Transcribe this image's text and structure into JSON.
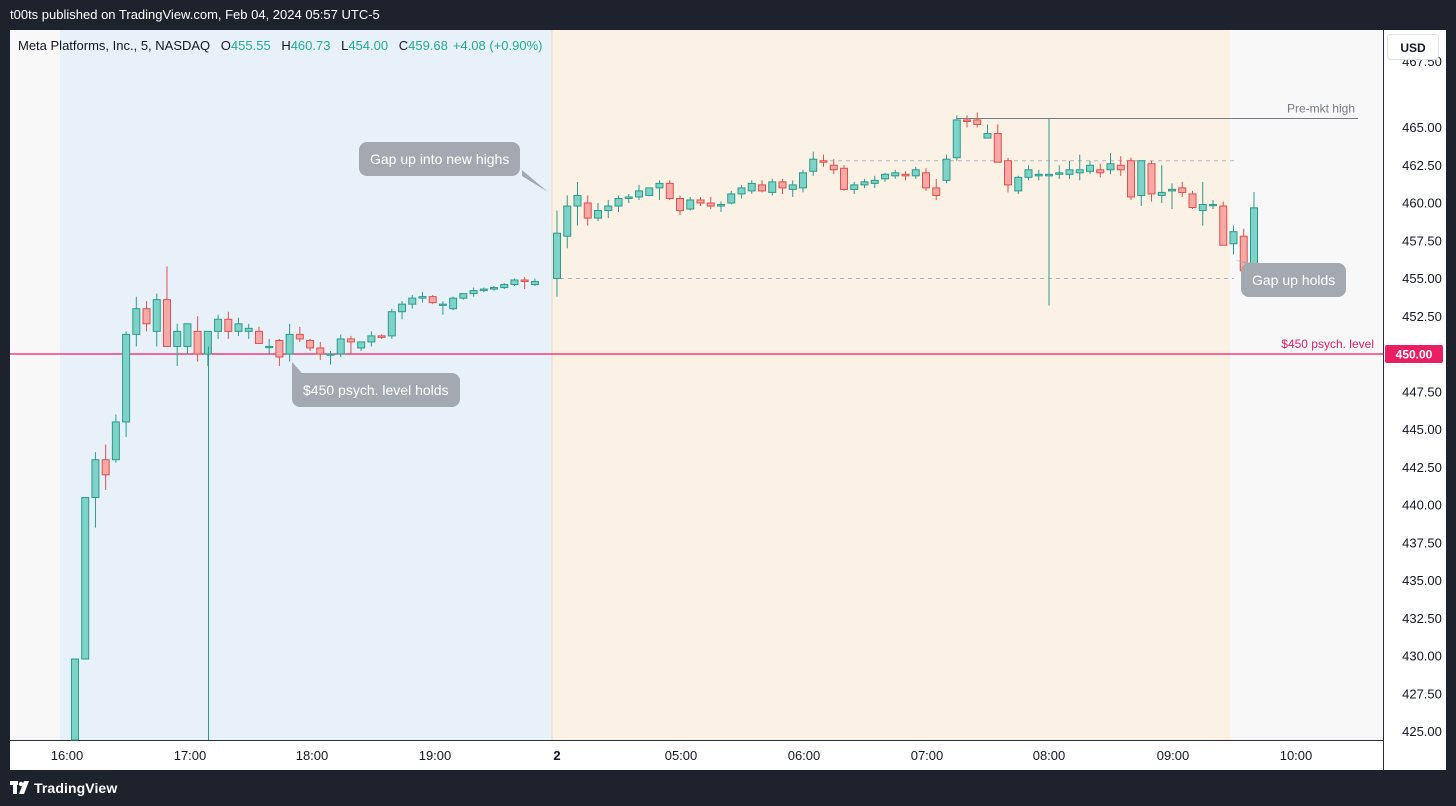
{
  "header": {
    "published": "t00ts published on TradingView.com, Feb 04, 2024 05:57 UTC-5"
  },
  "legend": {
    "symbol": "Meta Platforms, Inc., 5, NASDAQ",
    "open_label": "O",
    "open": "455.55",
    "high_label": "H",
    "high": "460.73",
    "low_label": "L",
    "low": "454.00",
    "close_label": "C",
    "close": "459.68",
    "change": "+4.08 (+0.90%)"
  },
  "currency_button": "USD",
  "annotations": {
    "gap_up_new_highs": "Gap up into new highs",
    "psych_level_holds": "$450 psych. level holds",
    "gap_up_holds": "Gap up holds"
  },
  "footer": {
    "brand": "TradingView"
  },
  "colors": {
    "up": "#26a69a",
    "up_fill": "#7dd3c8",
    "down": "#ef5350",
    "down_fill": "#f7a9a7",
    "psych_line": "#e91e63",
    "premarket_shade": "#e8f1f9",
    "regular_shade": "#fbf1e4",
    "grid": "#f0f3fa",
    "axis_text": "#131722"
  },
  "chart_data": {
    "type": "candlestick",
    "symbol": "Meta Platforms, Inc., 5, NASDAQ",
    "interval": "5",
    "currency": "USD",
    "y_ticks": [
      "425.00",
      "427.50",
      "430.00",
      "432.50",
      "435.00",
      "437.50",
      "440.00",
      "442.50",
      "445.00",
      "447.50",
      "450.00",
      "452.50",
      "455.00",
      "457.50",
      "460.00",
      "462.50",
      "465.00"
    ],
    "ylim": [
      422.5,
      467.5
    ],
    "x_ticks": [
      "16:00",
      "17:00",
      "18:00",
      "19:00",
      "2",
      "05:00",
      "06:00",
      "07:00",
      "08:00",
      "09:00",
      "10:00"
    ],
    "sessions": [
      {
        "from": "15:55",
        "to": "19:55"
      },
      {
        "from": "04:00",
        "to": "09:30"
      }
    ],
    "levels": [
      {
        "label": "Pre-mkt high",
        "value": 465.6
      },
      {
        "label": "$450 psych. level",
        "value": 450.0,
        "price_tag": "450.00"
      },
      {
        "value": 462.8
      },
      {
        "value": 455.0
      }
    ],
    "candles_session1": [
      [
        417.0,
        429.8,
        415.0,
        429.8
      ],
      [
        429.8,
        440.5,
        429.8,
        440.5
      ],
      [
        440.5,
        443.5,
        438.5,
        443.0
      ],
      [
        443.0,
        444.0,
        441.0,
        442.0
      ],
      [
        443.0,
        446.0,
        442.8,
        445.5
      ],
      [
        445.5,
        451.5,
        444.5,
        451.3
      ],
      [
        451.3,
        453.8,
        450.5,
        453.0
      ],
      [
        453.0,
        453.5,
        451.5,
        452.0
      ],
      [
        451.5,
        454.0,
        450.5,
        453.6
      ],
      [
        453.6,
        455.8,
        450.5,
        450.5
      ],
      [
        450.5,
        452.0,
        449.2,
        451.5
      ],
      [
        450.5,
        452.0,
        450.0,
        452.0
      ],
      [
        451.5,
        452.5,
        449.5,
        450.0
      ],
      [
        450.0,
        451.5,
        449.2,
        451.5
      ],
      [
        451.5,
        452.6,
        451.0,
        452.3
      ],
      [
        452.3,
        452.8,
        451.0,
        451.5
      ],
      [
        451.5,
        452.4,
        451.2,
        452.0
      ],
      [
        451.5,
        452.0,
        451.0,
        451.7
      ],
      [
        451.5,
        451.8,
        450.7,
        450.7
      ],
      [
        450.5,
        451.0,
        450.0,
        450.5
      ],
      [
        450.9,
        451.0,
        449.2,
        449.8
      ],
      [
        450.0,
        452.0,
        449.5,
        451.3
      ],
      [
        451.3,
        451.8,
        450.8,
        451.0
      ],
      [
        450.9,
        451.0,
        450.2,
        450.4
      ],
      [
        450.4,
        450.8,
        449.6,
        450.0
      ],
      [
        450.0,
        450.2,
        449.3,
        450.0
      ],
      [
        450.0,
        451.3,
        449.8,
        451.0
      ],
      [
        451.0,
        451.2,
        450.0,
        450.8
      ],
      [
        450.4,
        450.8,
        450.2,
        450.8
      ],
      [
        450.8,
        451.5,
        450.5,
        451.2
      ],
      [
        451.2,
        451.3,
        451.0,
        451.1
      ],
      [
        451.2,
        453.0,
        451.0,
        452.8
      ],
      [
        452.8,
        453.5,
        452.3,
        453.3
      ],
      [
        453.3,
        453.9,
        453.0,
        453.7
      ],
      [
        453.7,
        454.1,
        453.4,
        453.8
      ],
      [
        453.8,
        453.9,
        453.3,
        453.4
      ],
      [
        453.3,
        453.5,
        452.6,
        453.3
      ],
      [
        453.0,
        453.8,
        452.9,
        453.7
      ],
      [
        453.7,
        454.0,
        453.6,
        454.0
      ],
      [
        454.0,
        454.4,
        453.8,
        454.2
      ],
      [
        454.2,
        454.4,
        454.1,
        454.3
      ],
      [
        454.3,
        454.5,
        454.2,
        454.4
      ],
      [
        454.4,
        454.7,
        454.3,
        454.6
      ],
      [
        454.6,
        455.0,
        454.5,
        454.9
      ],
      [
        454.9,
        455.1,
        454.3,
        454.8
      ],
      [
        454.6,
        455.0,
        454.5,
        454.8
      ]
    ],
    "candles_session2": [
      [
        455.0,
        459.5,
        453.8,
        458.0
      ],
      [
        457.8,
        460.5,
        457.0,
        459.8
      ],
      [
        459.8,
        461.4,
        458.5,
        460.5
      ],
      [
        460.0,
        460.5,
        458.5,
        459.0
      ],
      [
        459.0,
        460.0,
        458.8,
        459.5
      ],
      [
        459.5,
        460.2,
        459.0,
        459.8
      ],
      [
        459.8,
        460.5,
        459.4,
        460.3
      ],
      [
        460.3,
        460.6,
        460.0,
        460.4
      ],
      [
        460.4,
        461.2,
        460.2,
        460.8
      ],
      [
        460.5,
        461.0,
        460.5,
        461.0
      ],
      [
        461.0,
        461.5,
        460.2,
        461.3
      ],
      [
        461.3,
        461.5,
        460.2,
        460.3
      ],
      [
        460.3,
        460.5,
        459.2,
        459.5
      ],
      [
        459.6,
        460.4,
        459.5,
        460.2
      ],
      [
        460.2,
        460.4,
        459.8,
        460.0
      ],
      [
        460.0,
        460.4,
        459.6,
        459.8
      ],
      [
        459.8,
        460.1,
        459.4,
        459.9
      ],
      [
        460.0,
        460.8,
        459.9,
        460.6
      ],
      [
        460.6,
        461.2,
        460.3,
        461.0
      ],
      [
        460.8,
        461.5,
        460.6,
        461.3
      ],
      [
        461.2,
        461.5,
        460.7,
        460.8
      ],
      [
        460.7,
        461.6,
        460.5,
        461.4
      ],
      [
        461.4,
        461.6,
        460.6,
        461.0
      ],
      [
        460.9,
        461.5,
        460.4,
        461.2
      ],
      [
        461.0,
        462.2,
        460.7,
        462.0
      ],
      [
        462.1,
        463.4,
        461.8,
        462.9
      ],
      [
        462.8,
        463.2,
        462.4,
        462.7
      ],
      [
        462.5,
        462.9,
        461.9,
        462.2
      ],
      [
        462.3,
        462.5,
        460.8,
        460.9
      ],
      [
        460.9,
        461.4,
        460.6,
        461.2
      ],
      [
        461.2,
        461.6,
        461.0,
        461.4
      ],
      [
        461.3,
        461.8,
        461.0,
        461.5
      ],
      [
        461.6,
        462.0,
        461.4,
        461.9
      ],
      [
        461.8,
        462.2,
        461.6,
        462.0
      ],
      [
        461.9,
        462.1,
        461.5,
        461.8
      ],
      [
        461.8,
        462.4,
        461.6,
        462.2
      ],
      [
        462.0,
        462.3,
        460.8,
        461.0
      ],
      [
        461.0,
        461.6,
        460.2,
        460.5
      ],
      [
        461.5,
        463.2,
        461.3,
        462.9
      ],
      [
        463.0,
        465.8,
        462.8,
        465.5
      ],
      [
        465.5,
        465.8,
        465.0,
        465.4
      ],
      [
        465.5,
        466.0,
        465.0,
        465.2
      ],
      [
        464.3,
        465.2,
        464.3,
        464.6
      ],
      [
        464.6,
        465.2,
        462.7,
        462.7
      ],
      [
        462.8,
        463.0,
        460.7,
        461.2
      ],
      [
        460.8,
        461.8,
        460.6,
        461.7
      ],
      [
        461.7,
        462.5,
        461.5,
        462.2
      ],
      [
        461.8,
        462.2,
        461.5,
        461.9
      ],
      [
        461.8,
        465.6,
        453.2,
        461.9
      ],
      [
        461.9,
        462.5,
        461.6,
        462.0
      ],
      [
        461.9,
        462.8,
        461.6,
        462.2
      ],
      [
        462.0,
        463.2,
        461.5,
        462.2
      ],
      [
        462.1,
        462.8,
        461.9,
        462.5
      ],
      [
        462.2,
        462.6,
        461.7,
        462.0
      ],
      [
        462.2,
        463.3,
        461.9,
        462.6
      ],
      [
        462.5,
        463.1,
        461.8,
        462.2
      ],
      [
        462.8,
        463.0,
        460.2,
        460.4
      ],
      [
        460.5,
        462.8,
        459.8,
        462.8
      ],
      [
        462.6,
        462.8,
        460.1,
        460.6
      ],
      [
        460.5,
        462.5,
        460.0,
        460.7
      ],
      [
        460.8,
        461.3,
        459.6,
        460.9
      ],
      [
        461.0,
        461.4,
        460.4,
        460.7
      ],
      [
        460.6,
        460.8,
        459.6,
        459.7
      ],
      [
        459.5,
        461.4,
        458.5,
        459.9
      ],
      [
        459.9,
        460.2,
        459.6,
        459.9
      ],
      [
        459.8,
        460.1,
        457.2,
        457.2
      ],
      [
        457.3,
        458.5,
        456.6,
        458.1
      ],
      [
        457.8,
        458.3,
        455.5,
        455.5
      ],
      [
        455.5,
        460.73,
        454.0,
        459.68
      ]
    ]
  }
}
